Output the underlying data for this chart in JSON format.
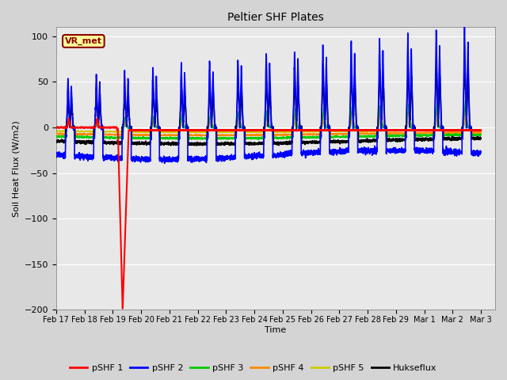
{
  "title": "Peltier SHF Plates",
  "xlabel": "Time",
  "ylabel": "Soil Heat Flux (W/m2)",
  "ylim": [
    -200,
    110
  ],
  "xlim_days": [
    0,
    15.5
  ],
  "fig_bg": "#d4d4d4",
  "plot_bg": "#e8e8e8",
  "annotation_text": "VR_met",
  "annotation_bg": "#ffff99",
  "annotation_border": "#8b0000",
  "annotation_text_color": "#8b0000",
  "series_colors": {
    "pSHF 1": "#ff0000",
    "pSHF 2": "#0000ff",
    "pSHF 3": "#00cc00",
    "pSHF 4": "#ff8800",
    "pSHF 5": "#cccc00",
    "Hukseflux": "#000000"
  },
  "xtick_labels": [
    "Feb 17",
    "Feb 18",
    "Feb 19",
    "Feb 20",
    "Feb 21",
    "Feb 22",
    "Feb 23",
    "Feb 24",
    "Feb 25",
    "Feb 26",
    "Feb 27",
    "Feb 28",
    "Feb 29",
    "Mar 1",
    "Mar 2",
    "Mar 3"
  ],
  "xtick_positions": [
    0,
    1,
    2,
    3,
    4,
    5,
    6,
    7,
    8,
    9,
    10,
    11,
    12,
    13,
    14,
    15
  ],
  "ytick_positions": [
    -200,
    -150,
    -100,
    -50,
    0,
    50,
    100
  ]
}
